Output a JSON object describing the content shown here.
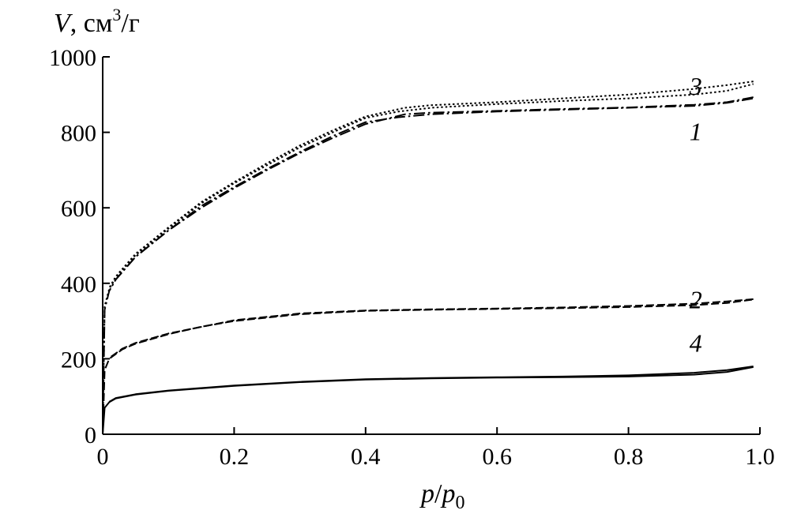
{
  "chart_data": {
    "type": "line",
    "title": "",
    "ylabel": {
      "var": "V",
      "sep": ", ",
      "unit_base": "см",
      "unit_sup": "3",
      "unit_tail": "/г"
    },
    "xlabel": {
      "var": "p",
      "slash": "/",
      "var2": "p",
      "sub": "0"
    },
    "xlim": [
      0,
      1.0
    ],
    "ylim": [
      0,
      1000
    ],
    "xticks": [
      0,
      0.2,
      0.4,
      0.6,
      0.8,
      1.0
    ],
    "xtick_labels": [
      "0",
      "0.2",
      "0.4",
      "0.6",
      "0.8",
      "1.0"
    ],
    "yticks": [
      0,
      200,
      400,
      600,
      800,
      1000
    ],
    "ytick_labels": [
      "0",
      "200",
      "400",
      "600",
      "800",
      "1000"
    ],
    "grid": false,
    "legend": "none",
    "series": [
      {
        "label": "1",
        "label_at": [
          0.9,
          800
        ],
        "linestyle": "dashdot",
        "adsorption": {
          "x": [
            0,
            0.003,
            0.01,
            0.02,
            0.05,
            0.1,
            0.15,
            0.2,
            0.25,
            0.3,
            0.35,
            0.4,
            0.45,
            0.5,
            0.6,
            0.7,
            0.8,
            0.9,
            0.95,
            0.99
          ],
          "y": [
            0,
            330,
            380,
            410,
            470,
            540,
            605,
            655,
            703,
            748,
            790,
            827,
            840,
            848,
            855,
            860,
            865,
            870,
            878,
            890
          ]
        },
        "desorption": {
          "x": [
            0.99,
            0.95,
            0.9,
            0.8,
            0.7,
            0.6,
            0.5,
            0.46,
            0.4,
            0.35,
            0.3,
            0.25,
            0.2,
            0.15,
            0.1,
            0.05,
            0.02,
            0.01
          ],
          "y": [
            893,
            880,
            873,
            866,
            862,
            857,
            852,
            848,
            822,
            785,
            745,
            700,
            652,
            600,
            540,
            470,
            410,
            380
          ]
        }
      },
      {
        "label": "2",
        "label_at": [
          0.9,
          355
        ],
        "linestyle": "dashed",
        "adsorption": {
          "x": [
            0,
            0.003,
            0.01,
            0.03,
            0.05,
            0.1,
            0.15,
            0.2,
            0.3,
            0.4,
            0.5,
            0.6,
            0.7,
            0.8,
            0.9,
            0.95,
            0.99
          ],
          "y": [
            0,
            170,
            200,
            225,
            240,
            265,
            285,
            300,
            318,
            327,
            330,
            332,
            334,
            337,
            342,
            348,
            357
          ]
        },
        "desorption": {
          "x": [
            0.99,
            0.95,
            0.9,
            0.8,
            0.7,
            0.6,
            0.5,
            0.4,
            0.3,
            0.2,
            0.1,
            0.05,
            0.03,
            0.01
          ],
          "y": [
            358,
            352,
            346,
            340,
            336,
            333,
            331,
            328,
            320,
            302,
            267,
            242,
            227,
            202
          ]
        }
      },
      {
        "label": "3",
        "label_at": [
          0.9,
          920
        ],
        "linestyle": "dotted",
        "adsorption": {
          "x": [
            0,
            0.003,
            0.01,
            0.02,
            0.05,
            0.1,
            0.15,
            0.2,
            0.25,
            0.3,
            0.35,
            0.4,
            0.45,
            0.5,
            0.6,
            0.7,
            0.8,
            0.9,
            0.95,
            0.99
          ],
          "y": [
            0,
            340,
            385,
            415,
            475,
            545,
            612,
            665,
            713,
            760,
            800,
            838,
            855,
            865,
            875,
            883,
            890,
            900,
            910,
            928
          ]
        },
        "desorption": {
          "x": [
            0.99,
            0.95,
            0.9,
            0.8,
            0.7,
            0.6,
            0.5,
            0.46,
            0.4,
            0.35,
            0.3,
            0.25,
            0.2,
            0.15,
            0.1,
            0.05,
            0.02,
            0.01
          ],
          "y": [
            935,
            925,
            915,
            900,
            890,
            880,
            872,
            865,
            842,
            805,
            765,
            718,
            668,
            615,
            548,
            478,
            418,
            388
          ]
        }
      },
      {
        "label": "4",
        "label_at": [
          0.9,
          240
        ],
        "linestyle": "solid",
        "adsorption": {
          "x": [
            0,
            0.003,
            0.01,
            0.02,
            0.05,
            0.1,
            0.2,
            0.3,
            0.4,
            0.5,
            0.6,
            0.7,
            0.8,
            0.9,
            0.95,
            0.99
          ],
          "y": [
            0,
            70,
            85,
            95,
            105,
            115,
            128,
            138,
            145,
            148,
            150,
            151,
            153,
            158,
            165,
            178
          ]
        },
        "desorption": {
          "x": [
            0.99,
            0.95,
            0.9,
            0.8,
            0.7,
            0.6,
            0.5,
            0.4,
            0.3,
            0.2,
            0.1,
            0.05,
            0.02,
            0.01
          ],
          "y": [
            180,
            170,
            163,
            156,
            153,
            151,
            149,
            146,
            139,
            129,
            116,
            106,
            96,
            86
          ]
        }
      }
    ]
  }
}
